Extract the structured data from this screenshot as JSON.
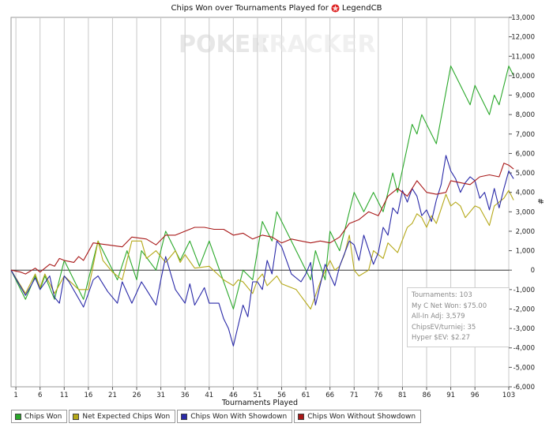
{
  "title": {
    "text": "Chips Won over Tournaments Played for",
    "player": "LegendCB",
    "icon": "pokerstars-logo-icon"
  },
  "watermark": {
    "part1": "POKER",
    "part2": "TRACKER"
  },
  "stats": {
    "lines": [
      "Tournaments: 103",
      "My C Net Won: $75.00",
      "All-In Adj: 3,579",
      "ChipsEV/turniej: 35",
      "Hyper $EV: $2.27"
    ]
  },
  "chart_data": {
    "type": "line",
    "title": "Chips Won over Tournaments Played for LegendCB",
    "xlabel": "Tournaments Played",
    "ylabel": "#",
    "xlim": [
      0,
      103
    ],
    "ylim": [
      -6000,
      13000
    ],
    "x_ticks": [
      1,
      6,
      11,
      16,
      21,
      26,
      31,
      36,
      41,
      46,
      51,
      56,
      61,
      66,
      71,
      76,
      81,
      86,
      91,
      96,
      103
    ],
    "y_ticks": [
      -6000,
      -5000,
      -4000,
      -3000,
      -2000,
      -1000,
      0,
      1000,
      2000,
      3000,
      4000,
      5000,
      6000,
      7000,
      8000,
      9000,
      10000,
      11000,
      12000,
      13000
    ],
    "y_tick_labels": [
      "-6,000",
      "-5,000",
      "-4,000",
      "-3,000",
      "-2,000",
      "-1,000",
      "0",
      "1,000",
      "2,000",
      "3,000",
      "4,000",
      "5,000",
      "6,000",
      "7,000",
      "8,000",
      "9,000",
      "10,000",
      "11,000",
      "12,000",
      "13,000"
    ],
    "grid": "vertical",
    "legend_position": "bottom",
    "series": [
      {
        "name": "Chips Won",
        "color": "#2aa82a",
        "points": [
          [
            0,
            0
          ],
          [
            3,
            -1500
          ],
          [
            5,
            -300
          ],
          [
            6,
            -1000
          ],
          [
            7,
            -300
          ],
          [
            9,
            -1500
          ],
          [
            11,
            500
          ],
          [
            15,
            -1500
          ],
          [
            18,
            1500
          ],
          [
            22,
            -500
          ],
          [
            24,
            1000
          ],
          [
            26,
            -500
          ],
          [
            27,
            1000
          ],
          [
            30,
            0
          ],
          [
            32,
            2000
          ],
          [
            35,
            500
          ],
          [
            37,
            1500
          ],
          [
            39,
            200
          ],
          [
            41,
            1500
          ],
          [
            46,
            -2000
          ],
          [
            48,
            0
          ],
          [
            50,
            -500
          ],
          [
            52,
            2500
          ],
          [
            54,
            1500
          ],
          [
            55,
            3000
          ],
          [
            59,
            1000
          ],
          [
            62,
            -500
          ],
          [
            63,
            1000
          ],
          [
            65,
            -500
          ],
          [
            66,
            2000
          ],
          [
            68,
            1000
          ],
          [
            71,
            4000
          ],
          [
            73,
            3000
          ],
          [
            75,
            4000
          ],
          [
            77,
            3000
          ],
          [
            79,
            5000
          ],
          [
            80,
            4000
          ],
          [
            83,
            7500
          ],
          [
            84,
            7000
          ],
          [
            85,
            8000
          ],
          [
            88,
            6500
          ],
          [
            91,
            10500
          ],
          [
            95,
            8500
          ],
          [
            96,
            9500
          ],
          [
            99,
            8000
          ],
          [
            100,
            9000
          ],
          [
            101,
            8500
          ],
          [
            103,
            10500
          ],
          [
            104,
            10000
          ]
        ]
      },
      {
        "name": "Net Expected Chips Won",
        "color": "#b5a818",
        "points": [
          [
            0,
            0
          ],
          [
            3,
            -1200
          ],
          [
            5,
            -200
          ],
          [
            6,
            -900
          ],
          [
            7,
            -200
          ],
          [
            9,
            -1200
          ],
          [
            11,
            -300
          ],
          [
            14,
            -1000
          ],
          [
            16,
            -1000
          ],
          [
            18,
            1500
          ],
          [
            19,
            500
          ],
          [
            21,
            -100
          ],
          [
            23,
            -500
          ],
          [
            25,
            1500
          ],
          [
            27,
            1500
          ],
          [
            28,
            600
          ],
          [
            30,
            1000
          ],
          [
            32,
            400
          ],
          [
            34,
            1000
          ],
          [
            35,
            400
          ],
          [
            36,
            800
          ],
          [
            38,
            100
          ],
          [
            41,
            200
          ],
          [
            44,
            -500
          ],
          [
            46,
            -800
          ],
          [
            47,
            -500
          ],
          [
            48,
            -600
          ],
          [
            50,
            -1200
          ],
          [
            51,
            -500
          ],
          [
            52,
            -200
          ],
          [
            53,
            -800
          ],
          [
            55,
            -300
          ],
          [
            56,
            -700
          ],
          [
            58,
            -900
          ],
          [
            59,
            -1000
          ],
          [
            62,
            -2000
          ],
          [
            64,
            -600
          ],
          [
            66,
            500
          ],
          [
            67,
            0
          ],
          [
            68,
            200
          ],
          [
            69,
            800
          ],
          [
            70,
            1800
          ],
          [
            71,
            0
          ],
          [
            72,
            -300
          ],
          [
            74,
            0
          ],
          [
            75,
            1000
          ],
          [
            77,
            600
          ],
          [
            78,
            1400
          ],
          [
            80,
            900
          ],
          [
            82,
            2200
          ],
          [
            83,
            2400
          ],
          [
            84,
            2900
          ],
          [
            85,
            2700
          ],
          [
            86,
            2200
          ],
          [
            87,
            2800
          ],
          [
            88,
            2400
          ],
          [
            90,
            3900
          ],
          [
            91,
            3300
          ],
          [
            92,
            3500
          ],
          [
            93,
            3300
          ],
          [
            94,
            2700
          ],
          [
            96,
            3300
          ],
          [
            97,
            3200
          ],
          [
            99,
            2300
          ],
          [
            100,
            3300
          ],
          [
            102,
            3700
          ],
          [
            103,
            4100
          ],
          [
            104,
            3600
          ]
        ]
      },
      {
        "name": "Chips Won With Showdown",
        "color": "#2a2aa8",
        "points": [
          [
            0,
            0
          ],
          [
            3,
            -1300
          ],
          [
            5,
            -400
          ],
          [
            6,
            -1000
          ],
          [
            8,
            -300
          ],
          [
            9,
            -1400
          ],
          [
            10,
            -1700
          ],
          [
            11,
            -300
          ],
          [
            12,
            -600
          ],
          [
            15,
            -1900
          ],
          [
            17,
            -500
          ],
          [
            18,
            -300
          ],
          [
            20,
            -1100
          ],
          [
            22,
            -1700
          ],
          [
            23,
            -600
          ],
          [
            25,
            -1700
          ],
          [
            27,
            -600
          ],
          [
            28,
            -1000
          ],
          [
            30,
            -1800
          ],
          [
            31,
            -500
          ],
          [
            32,
            700
          ],
          [
            34,
            -1000
          ],
          [
            36,
            -1700
          ],
          [
            37,
            -700
          ],
          [
            38,
            -1800
          ],
          [
            40,
            -900
          ],
          [
            41,
            -1700
          ],
          [
            43,
            -1700
          ],
          [
            44,
            -2500
          ],
          [
            45,
            -3000
          ],
          [
            46,
            -3900
          ],
          [
            48,
            -1800
          ],
          [
            49,
            -2400
          ],
          [
            50,
            -600
          ],
          [
            51,
            -600
          ],
          [
            52,
            -1000
          ],
          [
            53,
            500
          ],
          [
            54,
            -200
          ],
          [
            55,
            1500
          ],
          [
            56,
            1200
          ],
          [
            58,
            -200
          ],
          [
            60,
            -600
          ],
          [
            61,
            -200
          ],
          [
            62,
            400
          ],
          [
            63,
            -1800
          ],
          [
            65,
            300
          ],
          [
            67,
            -800
          ],
          [
            68,
            200
          ],
          [
            70,
            1500
          ],
          [
            71,
            1300
          ],
          [
            72,
            500
          ],
          [
            73,
            1800
          ],
          [
            75,
            300
          ],
          [
            76,
            900
          ],
          [
            77,
            2200
          ],
          [
            78,
            1800
          ],
          [
            79,
            3200
          ],
          [
            80,
            2900
          ],
          [
            81,
            4100
          ],
          [
            82,
            3500
          ],
          [
            83,
            4200
          ],
          [
            84,
            3800
          ],
          [
            85,
            2800
          ],
          [
            86,
            3100
          ],
          [
            87,
            2500
          ],
          [
            88,
            3600
          ],
          [
            89,
            4400
          ],
          [
            90,
            5900
          ],
          [
            91,
            5100
          ],
          [
            92,
            4700
          ],
          [
            93,
            4000
          ],
          [
            94,
            4500
          ],
          [
            95,
            4800
          ],
          [
            96,
            4600
          ],
          [
            97,
            3700
          ],
          [
            98,
            4000
          ],
          [
            99,
            3100
          ],
          [
            100,
            4200
          ],
          [
            101,
            3200
          ],
          [
            102,
            4200
          ],
          [
            103,
            5100
          ],
          [
            104,
            4700
          ]
        ]
      },
      {
        "name": "Chips Won Without Showdown",
        "color": "#a81818",
        "points": [
          [
            0,
            0
          ],
          [
            2,
            -100
          ],
          [
            3,
            -200
          ],
          [
            5,
            100
          ],
          [
            6,
            -100
          ],
          [
            8,
            300
          ],
          [
            9,
            200
          ],
          [
            10,
            600
          ],
          [
            11,
            500
          ],
          [
            13,
            400
          ],
          [
            14,
            700
          ],
          [
            15,
            500
          ],
          [
            17,
            1400
          ],
          [
            20,
            1300
          ],
          [
            23,
            1200
          ],
          [
            25,
            1700
          ],
          [
            28,
            1600
          ],
          [
            30,
            1300
          ],
          [
            32,
            1800
          ],
          [
            34,
            1800
          ],
          [
            36,
            2000
          ],
          [
            38,
            2200
          ],
          [
            40,
            2200
          ],
          [
            42,
            2100
          ],
          [
            44,
            2100
          ],
          [
            46,
            1800
          ],
          [
            48,
            1900
          ],
          [
            50,
            1600
          ],
          [
            52,
            1800
          ],
          [
            54,
            1700
          ],
          [
            56,
            1400
          ],
          [
            58,
            1600
          ],
          [
            60,
            1500
          ],
          [
            62,
            1400
          ],
          [
            64,
            1500
          ],
          [
            66,
            1400
          ],
          [
            68,
            1700
          ],
          [
            70,
            2400
          ],
          [
            72,
            2600
          ],
          [
            74,
            3000
          ],
          [
            76,
            2800
          ],
          [
            78,
            3800
          ],
          [
            80,
            4200
          ],
          [
            82,
            3800
          ],
          [
            84,
            4600
          ],
          [
            86,
            4000
          ],
          [
            88,
            3900
          ],
          [
            90,
            4000
          ],
          [
            91,
            4600
          ],
          [
            93,
            4500
          ],
          [
            95,
            4400
          ],
          [
            97,
            4800
          ],
          [
            99,
            4900
          ],
          [
            101,
            4800
          ],
          [
            102,
            5500
          ],
          [
            103,
            5400
          ],
          [
            104,
            5200
          ]
        ]
      }
    ]
  }
}
